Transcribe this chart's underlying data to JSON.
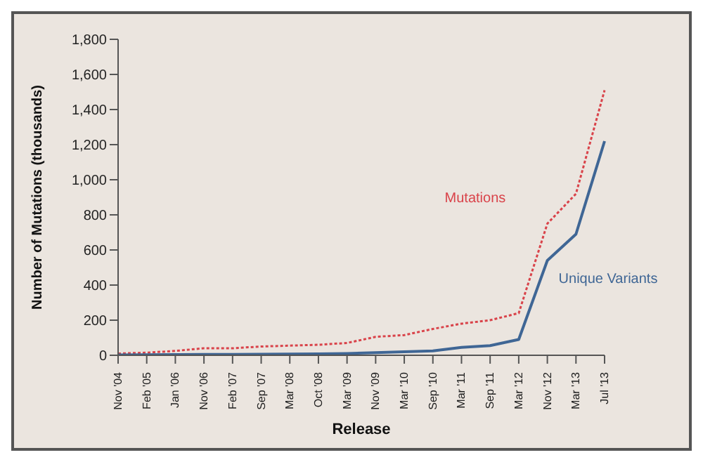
{
  "chart_data": {
    "type": "line",
    "xlabel": "Release",
    "ylabel": "Number of Mutations (thousands)",
    "categories": [
      "Nov '04",
      "Feb '05",
      "Jan '06",
      "Nov '06",
      "Feb '07",
      "Sep '07",
      "Mar '08",
      "Oct '08",
      "Mar '09",
      "Nov '09",
      "Mar '10",
      "Sep '10",
      "Mar '11",
      "Sep '11",
      "Mar '12",
      "Nov '12",
      "Mar '13",
      "Jul '13"
    ],
    "series": [
      {
        "name": "Mutations",
        "color": "#d9434a",
        "line_style": "dotted",
        "values": [
          10,
          15,
          25,
          40,
          40,
          50,
          55,
          60,
          70,
          105,
          115,
          150,
          180,
          200,
          240,
          750,
          920,
          1510
        ]
      },
      {
        "name": "Unique Variants",
        "color": "#3f6695",
        "line_style": "solid",
        "values": [
          2,
          3,
          4,
          5,
          5,
          6,
          7,
          8,
          10,
          15,
          20,
          25,
          45,
          55,
          90,
          540,
          690,
          1220
        ]
      }
    ],
    "ylim": [
      0,
      1800
    ],
    "yticks": [
      0,
      200,
      400,
      600,
      800,
      {
        "value": 1000,
        "label": "1,000"
      },
      {
        "value": 1200,
        "label": "1,200"
      },
      {
        "value": 1400,
        "label": "1,400"
      },
      {
        "value": 1600,
        "label": "1,600"
      },
      {
        "value": 1800,
        "label": "1,800"
      }
    ],
    "marker": "none"
  }
}
